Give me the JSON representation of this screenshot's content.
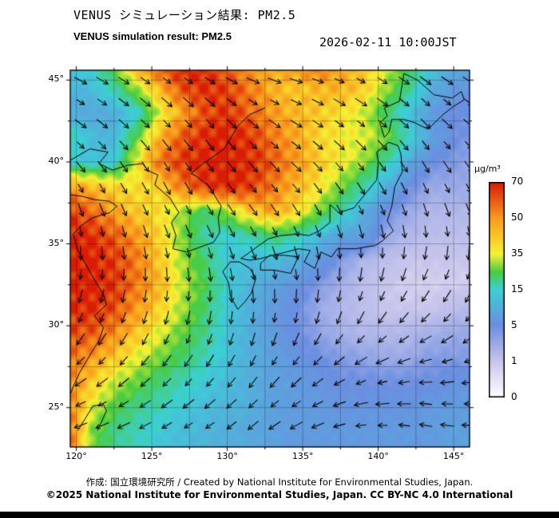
{
  "header": {
    "title_jp": "VENUS シミュレーション結果: PM2.5",
    "title_en": "VENUS simulation result: PM2.5",
    "timestamp": "2026-02-11 10:00JST"
  },
  "footer": {
    "credit": "作成: 国立環境研究所 / Created by National Institute for Environmental Studies, Japan.",
    "copyright": "©2025 National Institute for Environmental Studies, Japan. CC BY-NC 4.0 International"
  },
  "chart_data": {
    "type": "heatmap",
    "title": "VENUS simulation result: PM2.5",
    "timestamp": "2026-02-11 10:00JST",
    "variable": "PM2.5",
    "axes": {
      "lon_range": [
        119.6,
        146.05
      ],
      "lat_range": [
        22.6,
        45.6
      ],
      "xticks": [
        120,
        125,
        130,
        135,
        140,
        145
      ],
      "yticks": [
        25,
        30,
        35,
        40,
        45
      ],
      "tick_suffix": "°",
      "grid_interval_deg": 2.5
    },
    "colorbar": {
      "unit": "µg/m³",
      "tick_values": [
        70,
        50,
        35,
        15,
        5,
        1,
        0
      ],
      "stop_fractions": [
        0,
        0.1667,
        0.3333,
        0.5,
        0.5833,
        0.6667,
        0.8333,
        1
      ],
      "stop_colors": [
        "#ffffff",
        "#c8c5ec",
        "#6b8ee0",
        "#3ccfd6",
        "#49cc3f",
        "#f6f233",
        "#f99b1d",
        "#d91c06"
      ]
    },
    "pm25_grid": {
      "lon_start": 119.5,
      "lon_step": 1.5,
      "lat_start": 46.0,
      "lat_step": -1.5,
      "values": [
        [
          14,
          16,
          28,
          50,
          62,
          70,
          66,
          58,
          50,
          46,
          52,
          58,
          48,
          42,
          34,
          24,
          14,
          10,
          9
        ],
        [
          11,
          12,
          18,
          30,
          45,
          62,
          68,
          64,
          55,
          46,
          42,
          45,
          46,
          42,
          30,
          20,
          10,
          7,
          6
        ],
        [
          10,
          9,
          10,
          14,
          33,
          48,
          62,
          66,
          58,
          50,
          45,
          42,
          38,
          33,
          22,
          13,
          7,
          5,
          5
        ],
        [
          18,
          12,
          11,
          25,
          45,
          60,
          68,
          70,
          66,
          55,
          48,
          40,
          36,
          34,
          28,
          16,
          8,
          5,
          4
        ],
        [
          15,
          13,
          14,
          35,
          55,
          65,
          70,
          70,
          68,
          60,
          50,
          42,
          36,
          30,
          18,
          9,
          5,
          4,
          3
        ],
        [
          50,
          45,
          40,
          38,
          40,
          55,
          65,
          70,
          65,
          55,
          45,
          38,
          28,
          18,
          10,
          5,
          3,
          3,
          3
        ],
        [
          65,
          58,
          48,
          42,
          38,
          30,
          22,
          30,
          42,
          48,
          40,
          28,
          18,
          10,
          5,
          3,
          2,
          2,
          2
        ],
        [
          70,
          68,
          60,
          50,
          40,
          28,
          18,
          15,
          18,
          22,
          18,
          12,
          8,
          8,
          3,
          2,
          1.5,
          1.5,
          1.5
        ],
        [
          70,
          70,
          65,
          55,
          42,
          30,
          22,
          14,
          12,
          12,
          10,
          7,
          4,
          2,
          1.5,
          1,
          1,
          1,
          1
        ],
        [
          70,
          70,
          66,
          55,
          45,
          32,
          24,
          15,
          11,
          8,
          6,
          4,
          2.5,
          1.5,
          1,
          0.8,
          0.8,
          0.8,
          0.8
        ],
        [
          68,
          68,
          62,
          50,
          40,
          30,
          22,
          14,
          10,
          7,
          5,
          3,
          2,
          1.5,
          1,
          1,
          1,
          1.5,
          2
        ],
        [
          62,
          60,
          52,
          42,
          34,
          26,
          20,
          13,
          10,
          7,
          5,
          3.5,
          2.5,
          2,
          2,
          2,
          2.5,
          3,
          3
        ],
        [
          56,
          50,
          42,
          34,
          27,
          22,
          17,
          13,
          10,
          8,
          6,
          5,
          4,
          3.5,
          3,
          3,
          4,
          4,
          4
        ],
        [
          52,
          42,
          32,
          26,
          21,
          17,
          14,
          12,
          10,
          8,
          7,
          6,
          5,
          5,
          5,
          5,
          5,
          6,
          6
        ],
        [
          55,
          34,
          25,
          20,
          17,
          14,
          12,
          11,
          10,
          8,
          7,
          7,
          6,
          6,
          6,
          6,
          7,
          7,
          7
        ],
        [
          58,
          28,
          20,
          17,
          14,
          12,
          11,
          10,
          9,
          8,
          7,
          7,
          7,
          7,
          7,
          7,
          7,
          8,
          8
        ]
      ]
    },
    "wind_grid": {
      "lats": [
        45.5,
        42.5,
        39.5,
        36.5,
        33.5,
        30.5,
        27.5,
        24.5
      ],
      "lons": [
        120,
        122.9,
        125.8,
        128.7,
        131.6,
        134.4,
        137.3,
        140.2,
        143.1,
        146
      ],
      "angles_deg": [
        [
          -25,
          -30,
          -35,
          -30,
          -20,
          -15,
          -20,
          -30,
          -35,
          -30
        ],
        [
          -35,
          -40,
          -45,
          -50,
          -40,
          -30,
          -35,
          -40,
          -45,
          -40
        ],
        [
          -50,
          -55,
          -60,
          -55,
          -50,
          -45,
          -50,
          -55,
          -60,
          -55
        ],
        [
          -75,
          -70,
          -65,
          -60,
          -55,
          -60,
          -65,
          -70,
          -75,
          -70
        ],
        [
          -95,
          -90,
          -85,
          -80,
          -75,
          -80,
          -90,
          -100,
          -110,
          -105
        ],
        [
          -115,
          -110,
          -105,
          -100,
          -95,
          -100,
          -110,
          -125,
          -135,
          -130
        ],
        [
          -140,
          -135,
          -130,
          -125,
          -120,
          -130,
          -145,
          -160,
          -170,
          -165
        ],
        [
          -160,
          -155,
          -150,
          -145,
          -140,
          -150,
          -165,
          -180,
          -190,
          -185
        ]
      ]
    },
    "coastlines": {
      "china_north": [
        [
          119.6,
          40.1
        ],
        [
          120.9,
          40.8
        ],
        [
          122.1,
          40.6
        ],
        [
          121.5,
          39.9
        ],
        [
          122.4,
          39.5
        ],
        [
          123.4,
          39.8
        ],
        [
          124.4,
          39.9
        ]
      ],
      "china_east": [
        [
          119.6,
          38.0
        ],
        [
          120.4,
          37.9
        ],
        [
          121.2,
          37.7
        ],
        [
          122.2,
          37.6
        ],
        [
          122.7,
          37.3
        ],
        [
          122.2,
          36.9
        ],
        [
          121.1,
          36.6
        ],
        [
          120.3,
          36.1
        ],
        [
          119.8,
          35.6
        ],
        [
          120.1,
          34.6
        ],
        [
          120.6,
          33.8
        ],
        [
          121.2,
          32.8
        ],
        [
          121.8,
          31.9
        ],
        [
          122.0,
          31.3
        ],
        [
          121.2,
          30.6
        ],
        [
          121.8,
          29.9
        ],
        [
          121.5,
          29.1
        ],
        [
          120.9,
          28.2
        ],
        [
          120.2,
          27.1
        ],
        [
          119.8,
          26.3
        ],
        [
          119.6,
          25.8
        ]
      ],
      "korea": [
        [
          124.4,
          39.9
        ],
        [
          124.7,
          39.5
        ],
        [
          125.4,
          39.2
        ],
        [
          125.2,
          38.6
        ],
        [
          126.2,
          37.8
        ],
        [
          126.8,
          36.9
        ],
        [
          126.3,
          36.3
        ],
        [
          126.6,
          35.5
        ],
        [
          126.4,
          34.7
        ],
        [
          127.3,
          34.5
        ],
        [
          128.2,
          34.8
        ],
        [
          129.1,
          35.1
        ],
        [
          129.5,
          35.7
        ],
        [
          129.4,
          36.6
        ],
        [
          129.6,
          37.3
        ],
        [
          128.8,
          38.5
        ],
        [
          128.0,
          39.1
        ],
        [
          127.6,
          39.3
        ],
        [
          128.4,
          39.9
        ],
        [
          129.8,
          40.8
        ],
        [
          130.7,
          42.2
        ],
        [
          131.5,
          42.9
        ],
        [
          132.5,
          43.3
        ]
      ],
      "kyushu": [
        [
          130.2,
          33.9
        ],
        [
          129.7,
          33.3
        ],
        [
          130.1,
          32.6
        ],
        [
          130.2,
          31.8
        ],
        [
          130.7,
          31.0
        ],
        [
          131.2,
          31.5
        ],
        [
          131.6,
          32.0
        ],
        [
          131.9,
          32.9
        ],
        [
          131.5,
          33.5
        ],
        [
          130.8,
          33.9
        ],
        [
          130.2,
          33.9
        ]
      ],
      "shikoku": [
        [
          132.2,
          33.4
        ],
        [
          133.1,
          33.4
        ],
        [
          134.2,
          33.2
        ],
        [
          134.7,
          34.2
        ],
        [
          133.8,
          34.3
        ],
        [
          132.8,
          34.3
        ],
        [
          132.2,
          33.8
        ],
        [
          132.2,
          33.4
        ]
      ],
      "honshu": [
        [
          130.9,
          34.1
        ],
        [
          131.5,
          34.5
        ],
        [
          132.7,
          35.3
        ],
        [
          133.5,
          35.5
        ],
        [
          134.7,
          35.6
        ],
        [
          135.4,
          35.5
        ],
        [
          136.1,
          35.8
        ],
        [
          136.8,
          36.3
        ],
        [
          136.8,
          37.4
        ],
        [
          137.4,
          36.9
        ],
        [
          138.4,
          37.2
        ],
        [
          139.0,
          37.9
        ],
        [
          139.9,
          38.9
        ],
        [
          140.0,
          40.0
        ],
        [
          139.9,
          40.6
        ],
        [
          140.7,
          41.2
        ],
        [
          141.3,
          41.0
        ],
        [
          141.5,
          40.5
        ],
        [
          141.6,
          39.4
        ],
        [
          141.1,
          38.5
        ],
        [
          140.9,
          37.3
        ],
        [
          140.6,
          36.4
        ],
        [
          141.0,
          35.8
        ],
        [
          140.3,
          35.2
        ],
        [
          139.8,
          34.9
        ],
        [
          139.1,
          34.8
        ],
        [
          138.5,
          34.7
        ],
        [
          137.3,
          34.7
        ],
        [
          136.9,
          34.2
        ],
        [
          136.2,
          34.5
        ],
        [
          135.8,
          33.5
        ],
        [
          135.1,
          33.9
        ],
        [
          135.5,
          34.6
        ],
        [
          134.7,
          34.7
        ],
        [
          133.9,
          34.5
        ],
        [
          133.0,
          34.3
        ],
        [
          132.2,
          34.1
        ],
        [
          131.5,
          34.0
        ],
        [
          130.9,
          34.1
        ]
      ],
      "hokkaido": [
        [
          140.4,
          41.5
        ],
        [
          140.1,
          42.4
        ],
        [
          140.6,
          42.8
        ],
        [
          140.4,
          43.3
        ],
        [
          141.4,
          43.7
        ],
        [
          141.6,
          44.8
        ],
        [
          141.7,
          45.4
        ],
        [
          142.6,
          45.0
        ],
        [
          143.7,
          44.1
        ],
        [
          144.9,
          43.9
        ],
        [
          145.5,
          44.3
        ],
        [
          145.7,
          43.8
        ],
        [
          145.0,
          43.4
        ],
        [
          144.3,
          42.9
        ],
        [
          143.3,
          42.0
        ],
        [
          142.4,
          42.4
        ],
        [
          141.7,
          42.6
        ],
        [
          140.9,
          42.6
        ],
        [
          140.7,
          41.8
        ],
        [
          140.4,
          41.5
        ]
      ],
      "taiwan": [
        [
          120.1,
          23.6
        ],
        [
          121.1,
          25.1
        ],
        [
          121.8,
          25.2
        ],
        [
          122.0,
          24.8
        ],
        [
          121.4,
          23.6
        ]
      ],
      "sakhalin": [
        [
          141.9,
          45.6
        ],
        [
          142.1,
          46.0
        ]
      ]
    }
  }
}
